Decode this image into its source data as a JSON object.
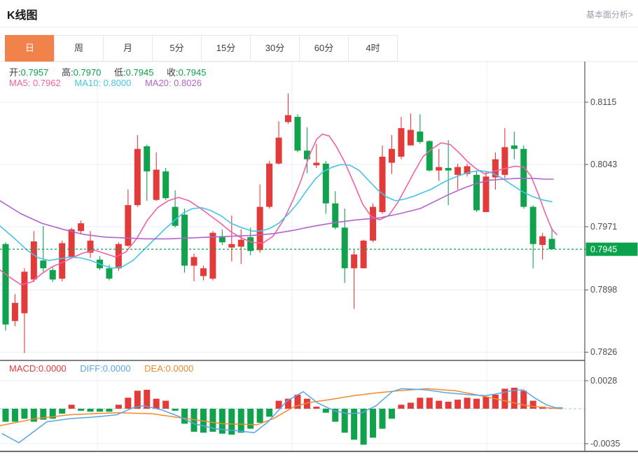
{
  "header": {
    "title": "K线图",
    "analysis_link": "基本面分析>"
  },
  "tabs": {
    "items": [
      "日",
      "周",
      "月",
      "5分",
      "15分",
      "30分",
      "60分",
      "4时"
    ],
    "active": "日"
  },
  "legend": {
    "ohlc": [
      {
        "label": "开:",
        "value": "0.7957"
      },
      {
        "label": "高:",
        "value": "0.7970"
      },
      {
        "label": "低:",
        "value": "0.7945"
      },
      {
        "label": "收:",
        "value": "0.7945"
      }
    ],
    "ma": [
      {
        "label": "MA5:",
        "value": "0.7962"
      },
      {
        "label": "MA10:",
        "value": "0.8000"
      },
      {
        "label": "MA20:",
        "value": "0.8026"
      }
    ],
    "macd": [
      {
        "label": "MACD:",
        "value": "0.0000"
      },
      {
        "label": "DIFF:",
        "value": "0.0000"
      },
      {
        "label": "DEA:",
        "value": "0.0000"
      }
    ]
  },
  "colors": {
    "up": "#e23b3a",
    "down": "#11a24d",
    "ma5": "#f45fa5",
    "ma10": "#45c5e6",
    "ma20": "#b264cc",
    "diff": "#5aa5e8",
    "dea": "#f08a2c",
    "tab_active": "#f0824a",
    "price_tag": "#0aa34b",
    "grid": "#e7eef5",
    "axis": "#54565a",
    "tick_text": "#4a4d52"
  },
  "chart_data": {
    "type": "candlestick+macd",
    "title": "K线图 (日K)",
    "legend_position": "top-left",
    "grid": true,
    "price_axis": {
      "ticks": [
        0.8115,
        0.8043,
        0.7971,
        0.7898,
        0.7826
      ],
      "current": 0.7945,
      "side": "right"
    },
    "macd_axis": {
      "ticks": [
        0.0028,
        -0.0035
      ]
    },
    "candles_ohlc": [
      [
        0.7951,
        0.7953,
        0.7851,
        0.7858
      ],
      [
        0.7862,
        0.7893,
        0.7856,
        0.7883
      ],
      [
        0.7871,
        0.7923,
        0.7825,
        0.7919
      ],
      [
        0.791,
        0.7966,
        0.7907,
        0.7954
      ],
      [
        0.7932,
        0.7972,
        0.7919,
        0.7923
      ],
      [
        0.7921,
        0.7924,
        0.7907,
        0.791
      ],
      [
        0.7911,
        0.7955,
        0.7908,
        0.7952
      ],
      [
        0.7936,
        0.797,
        0.7935,
        0.7968
      ],
      [
        0.7966,
        0.7978,
        0.7963,
        0.7975
      ],
      [
        0.7941,
        0.7966,
        0.7935,
        0.7955
      ],
      [
        0.7933,
        0.7937,
        0.7921,
        0.7923
      ],
      [
        0.7923,
        0.7927,
        0.7909,
        0.7911
      ],
      [
        0.7923,
        0.7953,
        0.792,
        0.7951
      ],
      [
        0.7949,
        0.8014,
        0.7948,
        0.7996
      ],
      [
        0.7996,
        0.8077,
        0.7994,
        0.8061
      ],
      [
        0.8064,
        0.8066,
        0.8001,
        0.8035
      ],
      [
        0.8002,
        0.8057,
        0.8001,
        0.8037
      ],
      [
        0.8035,
        0.8039,
        0.8002,
        0.8004
      ],
      [
        0.7994,
        0.8013,
        0.797,
        0.7972
      ],
      [
        0.7985,
        0.7992,
        0.7918,
        0.7926
      ],
      [
        0.7926,
        0.794,
        0.7908,
        0.7936
      ],
      [
        0.7914,
        0.7926,
        0.7909,
        0.7923
      ],
      [
        0.7911,
        0.7966,
        0.7909,
        0.7964
      ],
      [
        0.7959,
        0.7968,
        0.795,
        0.7953
      ],
      [
        0.7947,
        0.7984,
        0.7931,
        0.7951
      ],
      [
        0.7948,
        0.7968,
        0.7928,
        0.7956
      ],
      [
        0.7959,
        0.797,
        0.7938,
        0.7943
      ],
      [
        0.7944,
        0.802,
        0.7941,
        0.7994
      ],
      [
        0.7994,
        0.8047,
        0.7992,
        0.8044
      ],
      [
        0.8044,
        0.8093,
        0.8043,
        0.8074
      ],
      [
        0.8092,
        0.8125,
        0.809,
        0.81
      ],
      [
        0.8098,
        0.8101,
        0.8057,
        0.8059
      ],
      [
        0.8059,
        0.8086,
        0.8033,
        0.8049
      ],
      [
        0.8042,
        0.8067,
        0.8039,
        0.8045
      ],
      [
        0.8044,
        0.8047,
        0.7986,
        0.7998
      ],
      [
        0.7998,
        0.8012,
        0.7968,
        0.797
      ],
      [
        0.797,
        0.7992,
        0.7906,
        0.7923
      ],
      [
        0.7923,
        0.7944,
        0.7876,
        0.7939
      ],
      [
        0.7923,
        0.7956,
        0.7923,
        0.7955
      ],
      [
        0.7955,
        0.7998,
        0.7953,
        0.7994
      ],
      [
        0.7988,
        0.8065,
        0.7986,
        0.8052
      ],
      [
        0.8045,
        0.8077,
        0.8032,
        0.8061
      ],
      [
        0.8052,
        0.8098,
        0.8049,
        0.8085
      ],
      [
        0.8065,
        0.8102,
        0.8065,
        0.8083
      ],
      [
        0.8081,
        0.8101,
        0.8067,
        0.8069
      ],
      [
        0.807,
        0.8071,
        0.8035,
        0.8036
      ],
      [
        0.8036,
        0.8061,
        0.8024,
        0.804
      ],
      [
        0.8039,
        0.8071,
        0.7996,
        0.8036
      ],
      [
        0.8031,
        0.8044,
        0.8014,
        0.804
      ],
      [
        0.8032,
        0.8044,
        0.8029,
        0.8041
      ],
      [
        0.8031,
        0.8035,
        0.7988,
        0.799
      ],
      [
        0.7988,
        0.8035,
        0.7988,
        0.8029
      ],
      [
        0.8028,
        0.8057,
        0.8014,
        0.8049
      ],
      [
        0.8031,
        0.8085,
        0.8027,
        0.8063
      ],
      [
        0.8065,
        0.8081,
        0.8049,
        0.8061
      ],
      [
        0.8061,
        0.8065,
        0.7992,
        0.7994
      ],
      [
        0.7994,
        0.7996,
        0.7923,
        0.7951
      ],
      [
        0.795,
        0.7964,
        0.7933,
        0.796
      ],
      [
        0.7957,
        0.797,
        0.7945,
        0.7945
      ]
    ],
    "ma5_points": [
      [
        0,
        0.7921
      ],
      [
        15,
        0.7912
      ],
      [
        30,
        0.7904
      ],
      [
        45,
        0.7907
      ],
      [
        60,
        0.7917
      ],
      [
        75,
        0.7925
      ],
      [
        90,
        0.793
      ],
      [
        105,
        0.7936
      ],
      [
        120,
        0.7941
      ],
      [
        135,
        0.7944
      ],
      [
        150,
        0.794
      ],
      [
        165,
        0.7936
      ],
      [
        180,
        0.7942
      ],
      [
        195,
        0.7957
      ],
      [
        210,
        0.7978
      ],
      [
        225,
        0.7993
      ],
      [
        240,
        0.8001
      ],
      [
        255,
        0.8005
      ],
      [
        270,
        0.8001
      ],
      [
        285,
        0.7993
      ],
      [
        300,
        0.7984
      ],
      [
        315,
        0.7975
      ],
      [
        330,
        0.7965
      ],
      [
        345,
        0.7958
      ],
      [
        360,
        0.7953
      ],
      [
        375,
        0.7952
      ],
      [
        390,
        0.796
      ],
      [
        405,
        0.7979
      ],
      [
        418,
        0.8001
      ],
      [
        430,
        0.8025
      ],
      [
        442,
        0.8054
      ],
      [
        452,
        0.8072
      ],
      [
        460,
        0.8078
      ],
      [
        470,
        0.8076
      ],
      [
        480,
        0.8064
      ],
      [
        492,
        0.8046
      ],
      [
        505,
        0.8022
      ],
      [
        518,
        0.7997
      ],
      [
        530,
        0.7983
      ],
      [
        542,
        0.7979
      ],
      [
        555,
        0.7984
      ],
      [
        568,
        0.7999
      ],
      [
        580,
        0.8017
      ],
      [
        592,
        0.8035
      ],
      [
        604,
        0.8052
      ],
      [
        615,
        0.806
      ],
      [
        630,
        0.8068
      ],
      [
        643,
        0.8066
      ],
      [
        655,
        0.8057
      ],
      [
        668,
        0.8046
      ],
      [
        680,
        0.8038
      ],
      [
        692,
        0.8032
      ],
      [
        705,
        0.8035
      ],
      [
        720,
        0.8038
      ],
      [
        735,
        0.8041
      ],
      [
        748,
        0.804
      ],
      [
        758,
        0.803
      ],
      [
        768,
        0.801
      ],
      [
        778,
        0.7988
      ],
      [
        788,
        0.7968
      ],
      [
        795,
        0.7962
      ]
    ],
    "ma10_points": [
      [
        0,
        0.7972
      ],
      [
        20,
        0.7958
      ],
      [
        40,
        0.7943
      ],
      [
        55,
        0.7935
      ],
      [
        70,
        0.7932
      ],
      [
        85,
        0.7934
      ],
      [
        100,
        0.7936
      ],
      [
        115,
        0.7935
      ],
      [
        130,
        0.7932
      ],
      [
        145,
        0.7927
      ],
      [
        160,
        0.7923
      ],
      [
        175,
        0.7925
      ],
      [
        190,
        0.7932
      ],
      [
        205,
        0.7944
      ],
      [
        220,
        0.7956
      ],
      [
        235,
        0.7968
      ],
      [
        250,
        0.7979
      ],
      [
        262,
        0.7987
      ],
      [
        275,
        0.7992
      ],
      [
        288,
        0.7993
      ],
      [
        300,
        0.799
      ],
      [
        315,
        0.7984
      ],
      [
        330,
        0.7975
      ],
      [
        345,
        0.797
      ],
      [
        360,
        0.7966
      ],
      [
        372,
        0.7966
      ],
      [
        385,
        0.7969
      ],
      [
        398,
        0.7975
      ],
      [
        412,
        0.7986
      ],
      [
        425,
        0.7998
      ],
      [
        438,
        0.8013
      ],
      [
        450,
        0.8026
      ],
      [
        462,
        0.8035
      ],
      [
        475,
        0.804
      ],
      [
        487,
        0.8043
      ],
      [
        500,
        0.8042
      ],
      [
        513,
        0.8036
      ],
      [
        527,
        0.8024
      ],
      [
        540,
        0.8013
      ],
      [
        553,
        0.8005
      ],
      [
        565,
        0.8001
      ],
      [
        578,
        0.8003
      ],
      [
        590,
        0.8006
      ],
      [
        602,
        0.801
      ],
      [
        615,
        0.8014
      ],
      [
        628,
        0.802
      ],
      [
        640,
        0.8025
      ],
      [
        655,
        0.803
      ],
      [
        670,
        0.8034
      ],
      [
        685,
        0.8036
      ],
      [
        700,
        0.8034
      ],
      [
        715,
        0.8028
      ],
      [
        730,
        0.802
      ],
      [
        745,
        0.8012
      ],
      [
        760,
        0.8006
      ],
      [
        775,
        0.8002
      ],
      [
        788,
        0.8
      ]
    ],
    "ma20_points": [
      [
        0,
        0.8001
      ],
      [
        30,
        0.7986
      ],
      [
        60,
        0.7975
      ],
      [
        90,
        0.7968
      ],
      [
        120,
        0.7962
      ],
      [
        150,
        0.7959
      ],
      [
        180,
        0.7958
      ],
      [
        210,
        0.7957
      ],
      [
        240,
        0.7957
      ],
      [
        270,
        0.7958
      ],
      [
        300,
        0.7959
      ],
      [
        330,
        0.796
      ],
      [
        360,
        0.7961
      ],
      [
        390,
        0.7963
      ],
      [
        420,
        0.7967
      ],
      [
        450,
        0.7972
      ],
      [
        480,
        0.7976
      ],
      [
        510,
        0.7979
      ],
      [
        540,
        0.7981
      ],
      [
        570,
        0.7986
      ],
      [
        600,
        0.7992
      ],
      [
        620,
        0.8
      ],
      [
        640,
        0.8008
      ],
      [
        660,
        0.8015
      ],
      [
        680,
        0.8021
      ],
      [
        700,
        0.8025
      ],
      [
        720,
        0.8026
      ],
      [
        740,
        0.8027
      ],
      [
        760,
        0.8027
      ],
      [
        778,
        0.8026
      ],
      [
        790,
        0.8026
      ]
    ],
    "macd_hist": [
      -0.0013,
      -0.0013,
      -0.001,
      -0.0013,
      -0.0011,
      -0.001,
      -0.0005,
      0.0004,
      -0.0002,
      -0.0003,
      -0.0003,
      -0.0003,
      0.0004,
      0.0011,
      0.0018,
      0.0019,
      0.001,
      0.0008,
      -0.0002,
      -0.0015,
      -0.0023,
      -0.0024,
      -0.0023,
      -0.0025,
      -0.0026,
      -0.0024,
      -0.002,
      -0.0014,
      -0.0008,
      0.0008,
      0.001,
      0.0014,
      0.001,
      0.0002,
      -0.0004,
      -0.0013,
      -0.0024,
      -0.0031,
      -0.0036,
      -0.0029,
      -0.002,
      -0.001,
      0.0004,
      0.0006,
      0.0011,
      0.0011,
      0.0008,
      0.0007,
      0.0009,
      0.0011,
      0.001,
      0.0012,
      0.0014,
      0.002,
      0.0021,
      0.0018,
      0.0008,
      0.0002,
      0.0001
    ],
    "diff_points": [
      [
        3,
        -0.0025
      ],
      [
        27,
        -0.0034
      ],
      [
        67,
        -0.0013
      ],
      [
        100,
        -0.001
      ],
      [
        140,
        -0.0008
      ],
      [
        167,
        -0.0006
      ],
      [
        190,
        0.0001
      ],
      [
        205,
        0.0003
      ],
      [
        230,
        -0.0001
      ],
      [
        253,
        -0.0007
      ],
      [
        277,
        -0.0015
      ],
      [
        307,
        -0.002
      ],
      [
        337,
        -0.0022
      ],
      [
        363,
        -0.0024
      ],
      [
        383,
        -0.0013
      ],
      [
        410,
        0.0008
      ],
      [
        433,
        0.0017
      ],
      [
        453,
        0.0006
      ],
      [
        477,
        -0.0002
      ],
      [
        497,
        -0.0005
      ],
      [
        517,
        -0.0004
      ],
      [
        537,
        0.0003
      ],
      [
        560,
        0.0017
      ],
      [
        573,
        0.002
      ],
      [
        607,
        0.0019
      ],
      [
        637,
        0.0016
      ],
      [
        670,
        0.0014
      ],
      [
        693,
        0.0013
      ],
      [
        710,
        0.0015
      ],
      [
        730,
        0.0018
      ],
      [
        747,
        0.0019
      ],
      [
        763,
        0.0011
      ],
      [
        780,
        0.0004
      ],
      [
        793,
        0.0001
      ],
      [
        803,
        0.0001
      ]
    ],
    "dea_points": [
      [
        0,
        -0.0017
      ],
      [
        50,
        -0.001
      ],
      [
        100,
        -0.0006
      ],
      [
        167,
        -0.0004
      ],
      [
        217,
        -0.0005
      ],
      [
        267,
        -0.001
      ],
      [
        317,
        -0.0015
      ],
      [
        367,
        -0.0016
      ],
      [
        390,
        -0.001
      ],
      [
        405,
        -0.0004
      ],
      [
        420,
        0.0002
      ],
      [
        440,
        0.0006
      ],
      [
        470,
        0.0009
      ],
      [
        505,
        0.0013
      ],
      [
        540,
        0.0016
      ],
      [
        570,
        0.0018
      ],
      [
        610,
        0.002
      ],
      [
        650,
        0.0018
      ],
      [
        687,
        0.0013
      ],
      [
        720,
        0.0008
      ],
      [
        753,
        0.0003
      ],
      [
        780,
        0.0001
      ],
      [
        803,
        0.0
      ]
    ]
  }
}
